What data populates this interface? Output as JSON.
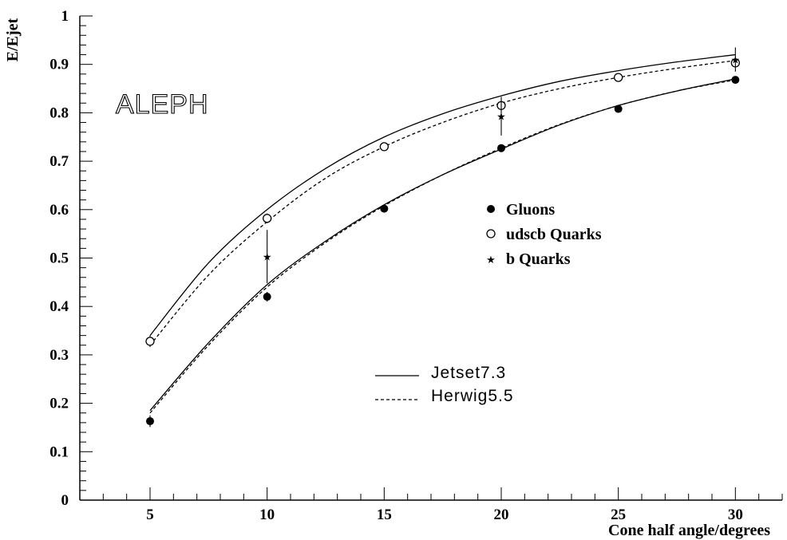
{
  "chart_data": {
    "type": "scatter",
    "brand_label": "ALEPH",
    "xlabel": "Cone half angle/degrees",
    "ylabel": "E/Ejet",
    "xlim": [
      2.0,
      32.0
    ],
    "ylim": [
      0,
      1
    ],
    "x_ticks": [
      "5",
      "10",
      "15",
      "20",
      "25",
      "30"
    ],
    "y_ticks": [
      "0",
      "0.1",
      "0.2",
      "0.3",
      "0.4",
      "0.5",
      "0.6",
      "0.7",
      "0.8",
      "0.9",
      "1"
    ],
    "grid": false,
    "series": [
      {
        "name": "Gluons",
        "marker": "filled-circle",
        "x": [
          5,
          10,
          15,
          20,
          25,
          30
        ],
        "y": [
          0.163,
          0.42,
          0.602,
          0.727,
          0.808,
          0.868
        ],
        "err": [
          0.012,
          0.01,
          0.008,
          0.008,
          0.006,
          0.006
        ]
      },
      {
        "name": "udscb Quarks",
        "marker": "open-circle",
        "x": [
          5,
          10,
          15,
          20,
          25,
          30
        ],
        "y": [
          0.328,
          0.582,
          0.73,
          0.815,
          0.873,
          0.903
        ],
        "err": [
          0.012,
          0.01,
          0.008,
          0.01,
          0.006,
          0.006
        ]
      },
      {
        "name": "b Quarks",
        "marker": "star",
        "x": [
          10,
          20,
          30
        ],
        "y": [
          0.503,
          0.793,
          0.91
        ],
        "err": [
          0.055,
          0.04,
          0.025
        ]
      }
    ],
    "curves": [
      {
        "name": "Jetset7.3",
        "style": "solid",
        "x": [
          5,
          7.5,
          10,
          12.5,
          15,
          17.5,
          20,
          22.5,
          25,
          27.5,
          30
        ],
        "y": [
          0.34,
          0.49,
          0.6,
          0.685,
          0.75,
          0.798,
          0.835,
          0.865,
          0.887,
          0.905,
          0.92
        ]
      },
      {
        "name": "Herwig5.5",
        "style": "dashed",
        "x": [
          5,
          7.5,
          10,
          12.5,
          15,
          17.5,
          20,
          22.5,
          25,
          27.5,
          30
        ],
        "y": [
          0.32,
          0.465,
          0.575,
          0.665,
          0.73,
          0.78,
          0.82,
          0.85,
          0.873,
          0.892,
          0.908
        ]
      },
      {
        "name": "Jetset7.3",
        "style": "solid",
        "x": [
          5,
          7.5,
          10,
          12.5,
          15,
          17.5,
          20,
          22.5,
          25,
          27.5,
          30
        ],
        "y": [
          0.185,
          0.325,
          0.445,
          0.535,
          0.61,
          0.672,
          0.725,
          0.775,
          0.815,
          0.845,
          0.87
        ]
      },
      {
        "name": "Herwig5.5",
        "style": "dashed",
        "x": [
          5,
          7.5,
          10,
          12.5,
          15,
          17.5,
          20,
          22.5,
          25,
          27.5,
          30
        ],
        "y": [
          0.18,
          0.32,
          0.44,
          0.532,
          0.608,
          0.672,
          0.727,
          0.776,
          0.815,
          0.845,
          0.868
        ]
      }
    ],
    "legend_markers": [
      "Gluons",
      "udscb Quarks",
      "b Quarks"
    ],
    "legend_lines": [
      "Jetset7.3",
      "Herwig5.5"
    ]
  }
}
